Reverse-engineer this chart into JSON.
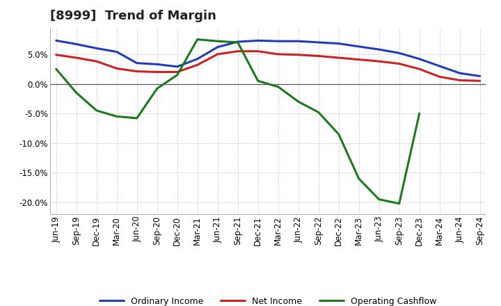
{
  "title": "[8999]  Trend of Margin",
  "x_labels": [
    "Jun-19",
    "Sep-19",
    "Dec-19",
    "Mar-20",
    "Jun-20",
    "Sep-20",
    "Dec-20",
    "Mar-21",
    "Jun-21",
    "Sep-21",
    "Dec-21",
    "Mar-22",
    "Jun-22",
    "Sep-22",
    "Dec-22",
    "Mar-23",
    "Jun-23",
    "Sep-23",
    "Dec-23",
    "Mar-24",
    "Jun-24",
    "Sep-24"
  ],
  "ordinary_income": [
    7.3,
    6.7,
    6.0,
    5.4,
    3.5,
    3.3,
    2.9,
    4.2,
    6.2,
    7.1,
    7.3,
    7.2,
    7.2,
    7.0,
    6.8,
    6.3,
    5.8,
    5.2,
    4.2,
    3.0,
    1.8,
    1.3
  ],
  "net_income": [
    4.9,
    4.4,
    3.8,
    2.6,
    2.1,
    2.0,
    2.0,
    3.2,
    5.0,
    5.5,
    5.5,
    5.0,
    4.9,
    4.7,
    4.4,
    4.1,
    3.8,
    3.4,
    2.5,
    1.2,
    0.6,
    0.5
  ],
  "operating_cashflow": [
    2.5,
    -1.5,
    -4.5,
    -5.5,
    -5.8,
    -0.8,
    1.5,
    7.5,
    7.2,
    7.0,
    0.5,
    -0.5,
    -3.0,
    -4.8,
    -8.5,
    -16.0,
    -19.5,
    -20.2,
    -5.0,
    null,
    null,
    null
  ],
  "ylim": [
    -22,
    9.5
  ],
  "yticks": [
    -20.0,
    -15.0,
    -10.0,
    -5.0,
    0.0,
    5.0
  ],
  "color_ordinary": "#1f3cba",
  "color_net": "#cc2222",
  "color_cashflow": "#1a7a1a",
  "background_color": "#ffffff",
  "plot_bg_color": "#ffffff",
  "grid_color": "#999999",
  "legend_labels": [
    "Ordinary Income",
    "Net Income",
    "Operating Cashflow"
  ],
  "title_fontsize": 13,
  "tick_fontsize": 8.5
}
